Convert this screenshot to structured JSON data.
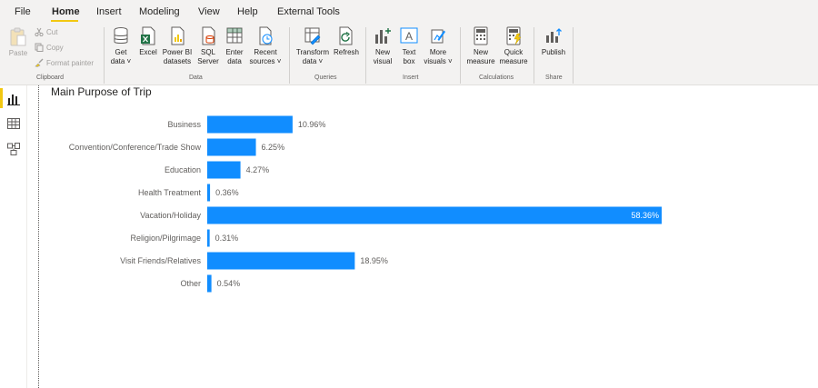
{
  "menu": {
    "items": [
      {
        "label": "File",
        "active": false
      },
      {
        "label": "Home",
        "active": true
      },
      {
        "label": "Insert",
        "active": false
      },
      {
        "label": "Modeling",
        "active": false
      },
      {
        "label": "View",
        "active": false
      },
      {
        "label": "Help",
        "active": false
      },
      {
        "label": "External Tools",
        "active": false
      }
    ]
  },
  "ribbon": {
    "clipboard": {
      "paste": "Paste",
      "cut": "Cut",
      "copy": "Copy",
      "format_painter": "Format painter",
      "label": "Clipboard"
    },
    "data": {
      "get_data_1": "Get",
      "get_data_2": "data ˅",
      "excel": "Excel",
      "powerbi_1": "Power BI",
      "powerbi_2": "datasets",
      "sql_1": "SQL",
      "sql_2": "Server",
      "enter_1": "Enter",
      "enter_2": "data",
      "recent_1": "Recent",
      "recent_2": "sources ˅",
      "label": "Data"
    },
    "queries": {
      "transform_1": "Transform",
      "transform_2": "data ˅",
      "refresh": "Refresh",
      "label": "Queries"
    },
    "insert": {
      "new_visual_1": "New",
      "new_visual_2": "visual",
      "text_box_1": "Text",
      "text_box_2": "box",
      "more_visuals_1": "More",
      "more_visuals_2": "visuals ˅",
      "label": "Insert"
    },
    "calculations": {
      "new_measure_1": "New",
      "new_measure_2": "measure",
      "quick_measure_1": "Quick",
      "quick_measure_2": "measure",
      "label": "Calculations"
    },
    "share": {
      "publish": "Publish",
      "label": "Share"
    }
  },
  "colors": {
    "bar": "#118dff",
    "accent": "#f2c811",
    "excel_green": "#217346"
  },
  "visual": {
    "title": "Main Purpose of Trip"
  },
  "chart_data": {
    "type": "bar",
    "orientation": "horizontal",
    "title": "Main Purpose of Trip",
    "categories": [
      "Business",
      "Convention/Conference/Trade Show",
      "Education",
      "Health Treatment",
      "Vacation/Holiday",
      "Religion/Pilgrimage",
      "Visit Friends/Relatives",
      "Other"
    ],
    "values": [
      10.96,
      6.25,
      4.27,
      0.36,
      58.36,
      0.31,
      18.95,
      0.54
    ],
    "data_labels": [
      "10.96%",
      "6.25%",
      "4.27%",
      "0.36%",
      "58.36%",
      "0.31%",
      "18.95%",
      "0.54%"
    ],
    "xlim": [
      0,
      58.36
    ],
    "grid": false,
    "legend": "none"
  }
}
